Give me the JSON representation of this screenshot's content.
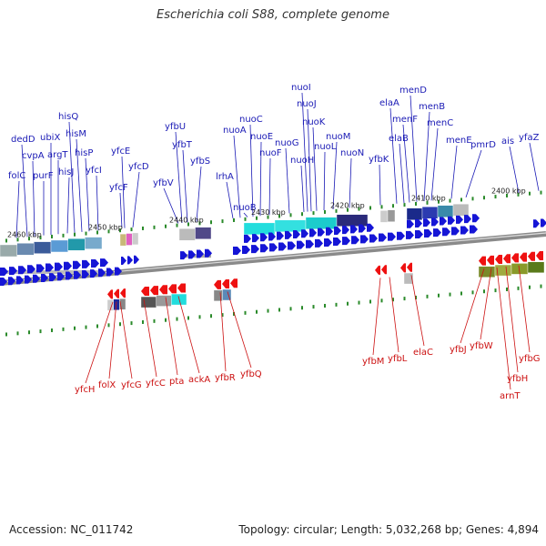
{
  "title": "Escherichia coli S88, complete genome",
  "footer": {
    "accession": "Accession: NC_011742",
    "summary": "Topology: circular; Length: 5,032,268 bp; Genes: 4,894"
  },
  "colors": {
    "forward_arrow": "#1515d6",
    "reverse_arrow": "#ee1111",
    "forward_label": "#1a1ab5",
    "reverse_label": "#cc1111",
    "tick_mark": "#2a8a2a",
    "backbone": "#777777"
  },
  "kbp_labels": [
    "2460 kbp",
    "2450 kbp",
    "2440 kbp",
    "2430 kbp",
    "2420 kbp",
    "2410 kbp",
    "2400 kbp"
  ],
  "forward_genes": [
    "folC",
    "dedD",
    "cvpA",
    "purF",
    "ubiX",
    "argT",
    "hisJ",
    "hisQ",
    "hisM",
    "hisP",
    "yfcI",
    "yfcF",
    "yfcE",
    "yfcD",
    "yfbV",
    "yfbU",
    "yfbT",
    "yfbS",
    "lrhA",
    "nuoA",
    "nuoB",
    "nuoC",
    "nuoE",
    "nuoF",
    "nuoG",
    "nuoH",
    "nuoI",
    "nuoJ",
    "nuoK",
    "nuoL",
    "nuoM",
    "nuoN",
    "yfbK",
    "elaA",
    "elaB",
    "menF",
    "menD",
    "menB",
    "menC",
    "menE",
    "pmrD",
    "ais",
    "yfaZ"
  ],
  "reverse_genes": [
    "yfcH",
    "folX",
    "yfcG",
    "yfcC",
    "pta",
    "ackA",
    "yfbR",
    "yfbQ",
    "yfbM",
    "yfbL",
    "elaC",
    "yfbJ",
    "yfbW",
    "arnT",
    "yfbH",
    "yfbG"
  ]
}
